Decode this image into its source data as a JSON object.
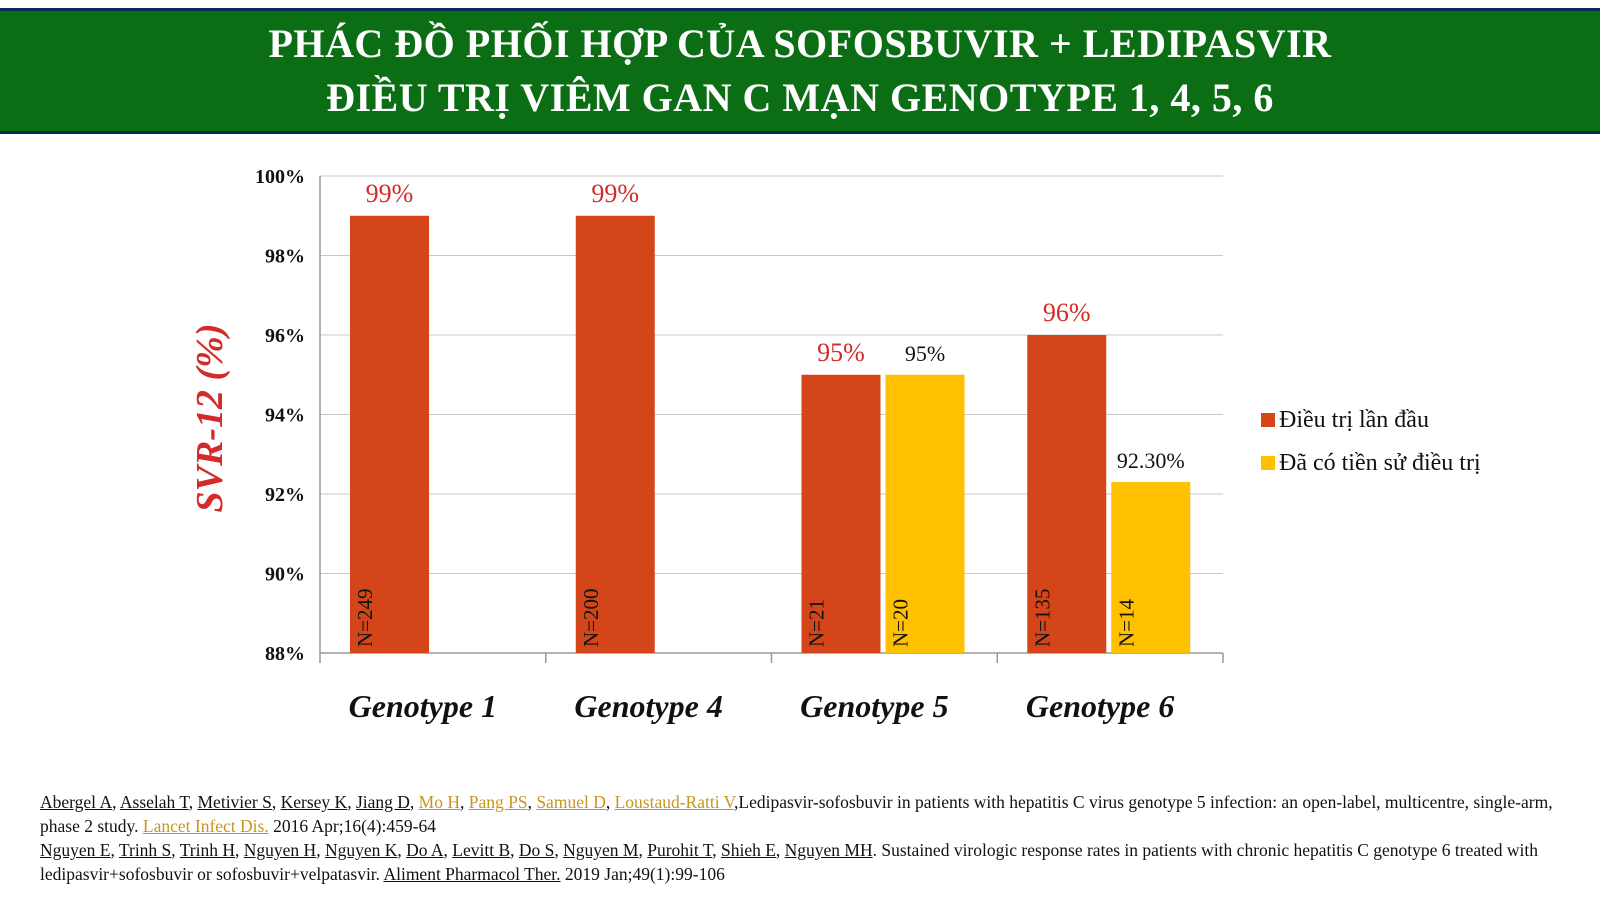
{
  "title": {
    "line1": "PHÁC ĐỒ PHỐI HỢP CỦA SOFOSBUVIR + LEDIPASVIR",
    "line2": "ĐIỀU TRỊ VIÊM GAN C MẠN GENOTYPE 1, 4, 5, 6"
  },
  "colors": {
    "banner": "#0b6e14",
    "naive": "#d4461a",
    "experienced": "#ffc000",
    "naive_label": "#d42a2a",
    "ylabel": "#d42a2a"
  },
  "chart_data": {
    "type": "bar",
    "ylabel": "SVR-12 (%)",
    "ylim": [
      88,
      100
    ],
    "yticks": [
      "88%",
      "90%",
      "92%",
      "94%",
      "96%",
      "98%",
      "100%"
    ],
    "grid": true,
    "legend_position": "right",
    "categories": [
      "Genotype 1",
      "Genotype 4",
      "Genotype 5",
      "Genotype 6"
    ],
    "series": [
      {
        "name": "Điều trị lần đầu",
        "values": [
          99,
          99,
          95,
          96
        ],
        "labels": [
          "99%",
          "99%",
          "95%",
          "96%"
        ],
        "n_labels": [
          "N=249",
          "N=200",
          "N=21",
          "N=135"
        ]
      },
      {
        "name": "Đã có tiền sử điều trị",
        "values": [
          null,
          null,
          95,
          92.3
        ],
        "labels": [
          null,
          null,
          "95%",
          "92.30%"
        ],
        "n_labels": [
          null,
          null,
          "N=20",
          "N=14"
        ]
      }
    ]
  },
  "references": {
    "ref1": {
      "authors_plain": [
        "Abergel A",
        "Asselah T",
        "Metivier S",
        "Kersey K",
        "Jiang D"
      ],
      "authors_gold": [
        "Mo H",
        "Pang PS",
        "Samuel D",
        "Loustaud-Ratti V"
      ],
      "title": "Ledipasvir-sofosbuvir in patients with hepatitis C virus genotype 5 infection: an open-label, multicentre, single-arm, phase 2 study.",
      "journal": "Lancet Infect Dis.",
      "citation": "2016 Apr;16(4):459-64"
    },
    "ref2": {
      "authors": [
        "Nguyen E",
        "Trinh S",
        "Trinh H",
        "Nguyen H",
        "Nguyen K",
        "Do A",
        "Levitt B",
        "Do S",
        "Nguyen M",
        "Purohit T",
        "Shieh E",
        "Nguyen MH"
      ],
      "title": "Sustained virologic response rates in patients with chronic hepatitis C genotype 6 treated with ledipasvir+sofosbuvir or sofosbuvir+velpatasvir.",
      "journal": "Aliment Pharmacol Ther.",
      "citation": "2019 Jan;49(1):99-106"
    }
  }
}
